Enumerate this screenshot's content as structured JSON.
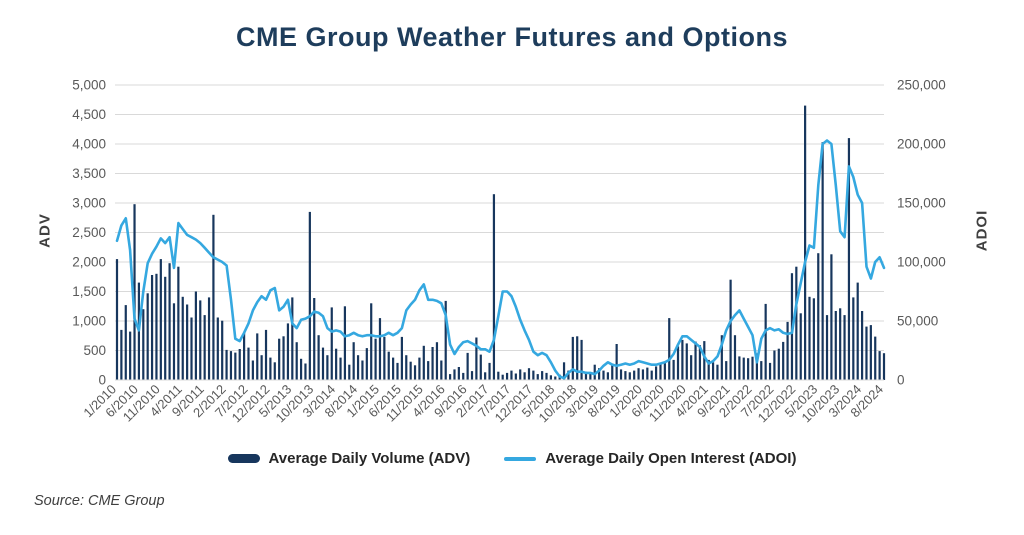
{
  "title": "CME Group Weather Futures and Options",
  "source": "Source: CME Group",
  "axes": {
    "left_label": "ADV",
    "right_label": "ADOI",
    "left_ticks": [
      "0",
      "500",
      "1,000",
      "1,500",
      "2,000",
      "2,500",
      "3,000",
      "3,500",
      "4,000",
      "4,500",
      "5,000"
    ],
    "right_ticks": [
      "0",
      "50,000",
      "100,000",
      "150,000",
      "200,000",
      "250,000"
    ]
  },
  "legend": [
    {
      "label": "Average Daily Volume (ADV)",
      "type": "bar",
      "color": "#17365d"
    },
    {
      "label": "Average Daily Open Interest (ADOI)",
      "type": "line",
      "color": "#35a8e0"
    }
  ],
  "colors": {
    "bar": "#17365d",
    "line": "#35a8e0",
    "title": "#1e3d5c",
    "grid": "#d9d9d9",
    "tick_text": "#595959"
  },
  "chart_data": {
    "type": "combo",
    "title": "CME Group Weather Futures and Options",
    "grid": "horizontal",
    "x_tick_every": 5,
    "left_axis": {
      "label": "ADV",
      "min": 0,
      "max": 5000,
      "step": 500
    },
    "right_axis": {
      "label": "ADOI",
      "min": 0,
      "max": 250000,
      "step": 50000
    },
    "categories": [
      "1/2010",
      "2/2010",
      "3/2010",
      "4/2010",
      "5/2010",
      "6/2010",
      "7/2010",
      "8/2010",
      "9/2010",
      "10/2010",
      "11/2010",
      "12/2010",
      "1/2011",
      "2/2011",
      "3/2011",
      "4/2011",
      "5/2011",
      "6/2011",
      "7/2011",
      "8/2011",
      "9/2011",
      "10/2011",
      "11/2011",
      "12/2011",
      "1/2012",
      "2/2012",
      "3/2012",
      "4/2012",
      "5/2012",
      "6/2012",
      "7/2012",
      "8/2012",
      "9/2012",
      "10/2012",
      "11/2012",
      "12/2012",
      "1/2013",
      "2/2013",
      "3/2013",
      "4/2013",
      "5/2013",
      "6/2013",
      "7/2013",
      "8/2013",
      "9/2013",
      "10/2013",
      "11/2013",
      "12/2013",
      "1/2014",
      "2/2014",
      "3/2014",
      "4/2014",
      "5/2014",
      "6/2014",
      "7/2014",
      "8/2014",
      "9/2014",
      "10/2014",
      "11/2014",
      "12/2014",
      "1/2015",
      "2/2015",
      "3/2015",
      "4/2015",
      "5/2015",
      "6/2015",
      "7/2015",
      "8/2015",
      "9/2015",
      "10/2015",
      "11/2015",
      "12/2015",
      "1/2016",
      "2/2016",
      "3/2016",
      "4/2016",
      "5/2016",
      "6/2016",
      "7/2016",
      "8/2016",
      "9/2016",
      "10/2016",
      "11/2016",
      "12/2016",
      "1/2017",
      "2/2017",
      "3/2017",
      "4/2017",
      "5/2017",
      "6/2017",
      "7/2017",
      "8/2017",
      "9/2017",
      "10/2017",
      "11/2017",
      "12/2017",
      "1/2018",
      "2/2018",
      "3/2018",
      "4/2018",
      "5/2018",
      "6/2018",
      "7/2018",
      "8/2018",
      "9/2018",
      "10/2018",
      "11/2018",
      "12/2018",
      "1/2019",
      "2/2019",
      "3/2019",
      "4/2019",
      "5/2019",
      "6/2019",
      "7/2019",
      "8/2019",
      "9/2019",
      "10/2019",
      "11/2019",
      "12/2019",
      "1/2020",
      "2/2020",
      "3/2020",
      "4/2020",
      "5/2020",
      "6/2020",
      "7/2020",
      "8/2020",
      "9/2020",
      "10/2020",
      "11/2020",
      "12/2020",
      "1/2021",
      "2/2021",
      "3/2021",
      "4/2021",
      "5/2021",
      "6/2021",
      "7/2021",
      "8/2021",
      "9/2021",
      "10/2021",
      "11/2021",
      "12/2021",
      "1/2022",
      "2/2022",
      "3/2022",
      "4/2022",
      "5/2022",
      "6/2022",
      "7/2022",
      "8/2022",
      "9/2022",
      "10/2022",
      "11/2022",
      "12/2022",
      "1/2023",
      "2/2023",
      "3/2023",
      "4/2023",
      "5/2023",
      "6/2023",
      "7/2023",
      "8/2023",
      "9/2023",
      "10/2023",
      "11/2023",
      "12/2023",
      "1/2024",
      "2/2024",
      "3/2024",
      "4/2024",
      "5/2024",
      "6/2024",
      "7/2024",
      "8/2024"
    ],
    "series": [
      {
        "name": "Average Daily Volume (ADV)",
        "type": "bar",
        "axis": "left",
        "color": "#17365d",
        "values": [
          2050,
          850,
          1270,
          820,
          2980,
          1650,
          1200,
          1470,
          1780,
          1800,
          2050,
          1750,
          1980,
          1300,
          1920,
          1410,
          1280,
          1060,
          1500,
          1350,
          1100,
          1400,
          2800,
          1060,
          1005,
          510,
          490,
          465,
          525,
          800,
          550,
          330,
          790,
          420,
          850,
          380,
          300,
          700,
          740,
          960,
          1400,
          640,
          360,
          280,
          2850,
          1390,
          760,
          550,
          420,
          1230,
          530,
          380,
          1250,
          260,
          640,
          420,
          330,
          540,
          1300,
          700,
          1050,
          730,
          480,
          380,
          290,
          730,
          420,
          310,
          250,
          380,
          580,
          320,
          560,
          640,
          330,
          1340,
          100,
          180,
          220,
          120,
          460,
          150,
          720,
          430,
          130,
          290,
          3150,
          140,
          90,
          120,
          160,
          110,
          180,
          130,
          200,
          160,
          100,
          150,
          120,
          80,
          60,
          90,
          300,
          160,
          730,
          740,
          680,
          140,
          120,
          260,
          200,
          160,
          130,
          280,
          610,
          180,
          150,
          130,
          160,
          200,
          180,
          210,
          160,
          230,
          280,
          300,
          1050,
          340,
          570,
          680,
          620,
          420,
          650,
          590,
          660,
          340,
          300,
          260,
          760,
          320,
          1700,
          760,
          400,
          380,
          370,
          395,
          450,
          320,
          1290,
          290,
          500,
          530,
          645,
          985,
          1810,
          1920,
          1130,
          4650,
          1410,
          1385,
          2150,
          4030,
          1100,
          2130,
          1170,
          1215,
          1100,
          4100,
          1400,
          1650,
          1170,
          905,
          930,
          735,
          490,
          455
        ]
      },
      {
        "name": "Average Daily Open Interest (ADOI)",
        "type": "line",
        "axis": "right",
        "color": "#35a8e0",
        "values": [
          118000,
          131000,
          137000,
          110000,
          52000,
          42000,
          75000,
          99000,
          107000,
          113000,
          120000,
          116000,
          121000,
          95000,
          133000,
          128000,
          123000,
          121000,
          119000,
          116000,
          112000,
          108000,
          104000,
          102000,
          100000,
          97000,
          68000,
          35000,
          33000,
          40000,
          48000,
          59000,
          66000,
          71000,
          68000,
          76000,
          78000,
          59000,
          62000,
          68000,
          48000,
          44000,
          51000,
          52000,
          54000,
          58000,
          57000,
          54000,
          44000,
          41000,
          42000,
          41000,
          37000,
          38000,
          40000,
          38000,
          37000,
          38000,
          38000,
          37000,
          37000,
          38000,
          40000,
          38000,
          40000,
          44000,
          59000,
          64000,
          68000,
          76000,
          81000,
          68000,
          68000,
          67000,
          65000,
          55000,
          30000,
          22000,
          28000,
          32000,
          33000,
          31000,
          29000,
          26000,
          26000,
          24000,
          34000,
          54000,
          75000,
          75000,
          71000,
          62000,
          51000,
          42000,
          34000,
          24000,
          21000,
          23000,
          21000,
          15000,
          8000,
          3000,
          1500,
          6000,
          9000,
          7000,
          7000,
          6000,
          6000,
          5000,
          8000,
          12000,
          15000,
          13000,
          12000,
          13000,
          14000,
          13000,
          14000,
          16000,
          15000,
          14000,
          13000,
          13000,
          14000,
          15000,
          17000,
          22000,
          30000,
          37000,
          37000,
          34000,
          31000,
          28000,
          20000,
          14000,
          16000,
          20000,
          30000,
          42000,
          50000,
          55000,
          59000,
          52000,
          45000,
          38000,
          15000,
          35000,
          42000,
          44000,
          42000,
          43000,
          40000,
          39000,
          40000,
          64000,
          82000,
          100000,
          114000,
          112000,
          165000,
          200000,
          203000,
          200000,
          165000,
          126000,
          121000,
          181000,
          172000,
          157000,
          150000,
          96000,
          86000,
          100000,
          104000,
          95000
        ]
      }
    ]
  }
}
